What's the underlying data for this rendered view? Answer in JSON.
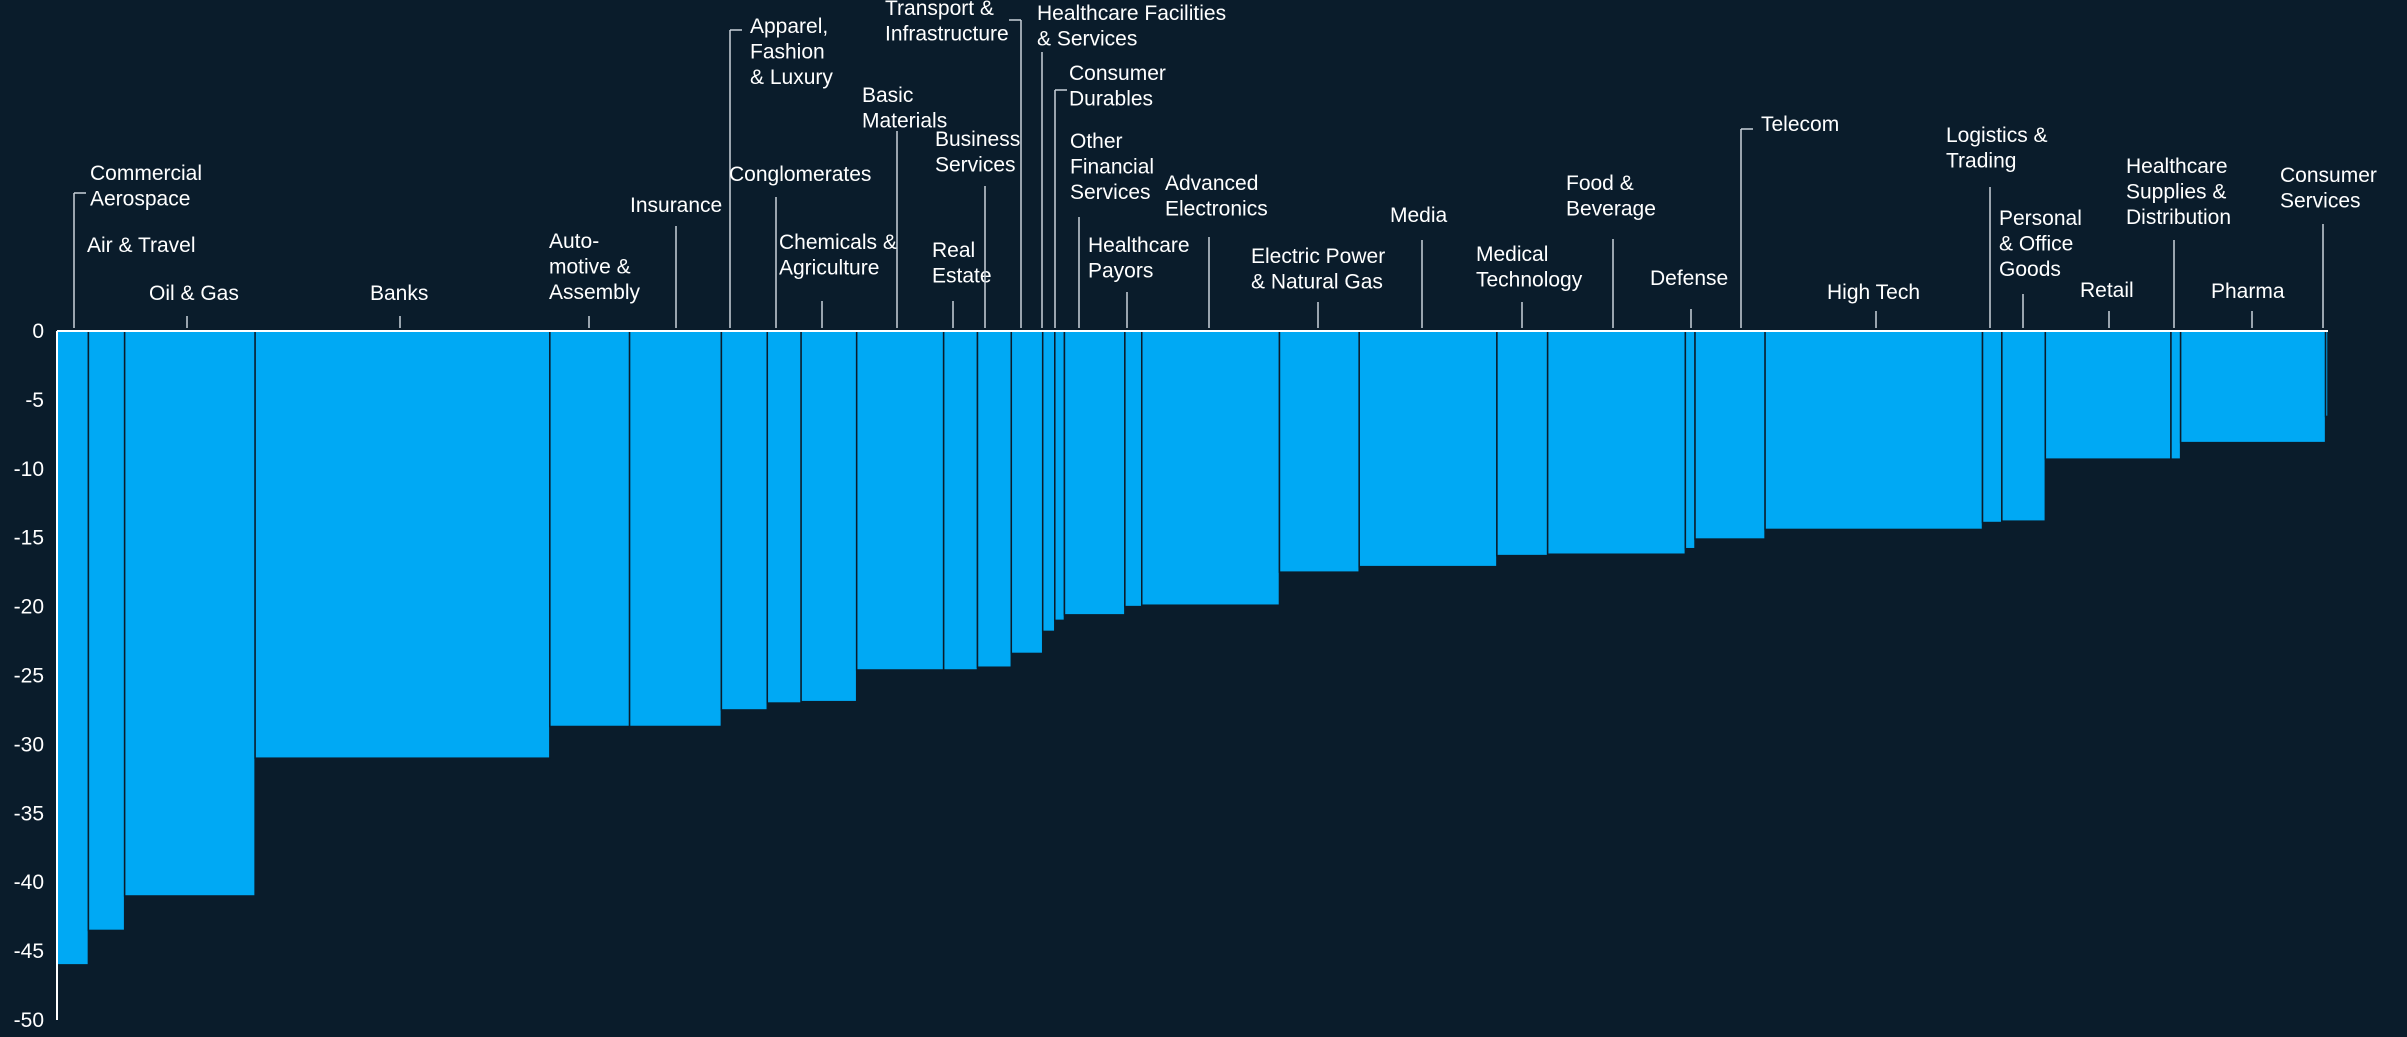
{
  "colors": {
    "background": "#0a1c2b",
    "bar": "#00a9f4",
    "bar_edge": "#0a1c2b",
    "text": "#ffffff",
    "axis": "#ffffff",
    "leader": "#c9d2da"
  },
  "chart_data": {
    "type": "bar",
    "variant": "variable-width (marimekko)",
    "title": "",
    "xlabel": "",
    "ylabel": "",
    "ylim": [
      -50,
      0
    ],
    "yticks": [
      "0",
      "-5",
      "-10",
      "-15",
      "-20",
      "-25",
      "-30",
      "-35",
      "-40",
      "-45",
      "-50"
    ],
    "grid": false,
    "legend": "none",
    "categories": [
      "Commercial\nAerospace",
      "Air & Travel",
      "Oil & Gas",
      "Banks",
      "Auto-\nmotive &\nAssembly",
      "Insurance",
      "Apparel,\nFashion\n& Luxury",
      "Conglomerates",
      "Chemicals &\nAgriculture",
      "Basic\nMaterials",
      "Real\nEstate",
      "Business\nServices",
      "Transport &\nInfrastructure",
      "Healthcare Facilities\n& Services",
      "Consumer\nDurables",
      "Other\nFinancial\nServices",
      "Healthcare\nPayors",
      "Advanced\nElectronics",
      "Electric Power\n& Natural Gas",
      "Media",
      "Medical\nTechnology",
      "Food &\nBeverage",
      "Defense",
      "Telecom",
      "High Tech",
      "Logistics &\nTrading",
      "Personal\n& Office\nGoods",
      "Retail",
      "Healthcare\nSupplies &\nDistribution",
      "Pharma",
      "Consumer\nServices"
    ],
    "values": [
      -46.0,
      -43.5,
      -41.0,
      -31.0,
      -28.7,
      -28.7,
      -27.5,
      -27.0,
      -26.9,
      -24.6,
      -24.6,
      -24.4,
      -23.4,
      -21.8,
      -21.0,
      -20.6,
      -20.0,
      -19.9,
      -17.5,
      -17.1,
      -16.3,
      -16.2,
      -15.8,
      -15.1,
      -14.4,
      -13.9,
      -13.8,
      -9.3,
      -9.3,
      -8.1,
      -6.2
    ],
    "widths": [
      1.3,
      1.5,
      5.4,
      12.2,
      3.3,
      3.8,
      1.9,
      1.4,
      2.3,
      3.6,
      1.4,
      1.4,
      1.3,
      0.5,
      0.4,
      2.5,
      0.7,
      5.7,
      3.3,
      5.7,
      2.1,
      5.7,
      0.4,
      2.9,
      9.0,
      0.8,
      1.8,
      5.2,
      0.4,
      6.0,
      0.1
    ]
  }
}
